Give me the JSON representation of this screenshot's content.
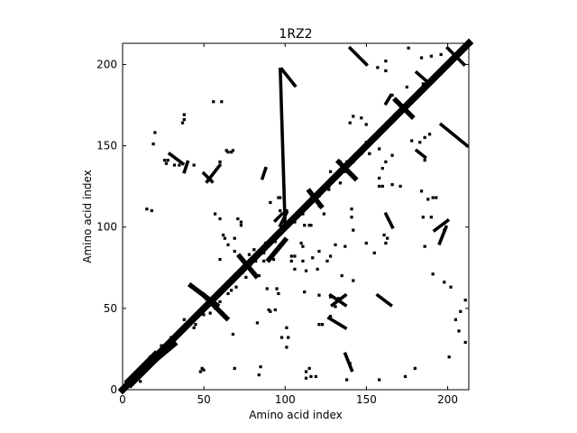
{
  "chart_data": {
    "type": "heatmap",
    "title": "1RZ2",
    "xlabel": "Amino acid index",
    "ylabel": "Amino acid index",
    "xlim": [
      0,
      213
    ],
    "ylim": [
      0,
      213
    ],
    "xticks": [
      0,
      50,
      100,
      150,
      200
    ],
    "yticks": [
      0,
      50,
      100,
      150,
      200
    ],
    "grid": false,
    "colors": {
      "contact": "#000000",
      "background": "#ffffff"
    },
    "diagonal": {
      "from": [
        0,
        0
      ],
      "to": [
        213,
        213
      ],
      "note_width_residues": 3
    },
    "segments": [
      {
        "from": [
          5,
          5
        ],
        "to": [
          20,
          20
        ],
        "width": 6
      },
      {
        "from": [
          20,
          18
        ],
        "to": [
          32,
          28
        ],
        "width": 3
      },
      {
        "from": [
          50,
          58
        ],
        "to": [
          64,
          44
        ],
        "width": 3
      },
      {
        "from": [
          42,
          64
        ],
        "to": [
          58,
          52
        ],
        "width": 3
      },
      {
        "from": [
          72,
          82
        ],
        "to": [
          82,
          70
        ],
        "width": 3
      },
      {
        "from": [
          90,
          80
        ],
        "to": [
          100,
          92
        ],
        "width": 3
      },
      {
        "from": [
          115,
          122
        ],
        "to": [
          122,
          113
        ],
        "width": 3
      },
      {
        "from": [
          133,
          140
        ],
        "to": [
          143,
          130
        ],
        "width": 3
      },
      {
        "from": [
          168,
          178
        ],
        "to": [
          178,
          168
        ],
        "width": 3
      },
      {
        "from": [
          137,
          58
        ],
        "to": [
          129,
          52
        ],
        "width": 2
      },
      {
        "from": [
          128,
          58
        ],
        "to": [
          137,
          52
        ],
        "width": 2
      },
      {
        "from": [
          59,
          137
        ],
        "to": [
          52,
          128
        ],
        "width": 2
      },
      {
        "from": [
          50,
          133
        ],
        "to": [
          55,
          128
        ],
        "width": 2
      },
      {
        "from": [
          140,
          210
        ],
        "to": [
          150,
          200
        ],
        "width": 2
      },
      {
        "from": [
          196,
          163
        ],
        "to": [
          212,
          150
        ],
        "width": 2
      },
      {
        "from": [
          200,
          210
        ],
        "to": [
          210,
          200
        ],
        "width": 2
      },
      {
        "from": [
          100,
          100
        ],
        "to": [
          97,
          197
        ],
        "width": 2
      },
      {
        "from": [
          98,
          197
        ],
        "to": [
          106,
          187
        ],
        "width": 2
      },
      {
        "from": [
          195,
          90
        ],
        "to": [
          199,
          100
        ],
        "width": 2
      },
      {
        "from": [
          192,
          98
        ],
        "to": [
          200,
          104
        ],
        "width": 2
      },
      {
        "from": [
          137,
          22
        ],
        "to": [
          141,
          12
        ],
        "width": 2
      },
      {
        "from": [
          127,
          44
        ],
        "to": [
          137,
          38
        ],
        "width": 2
      },
      {
        "from": [
          29,
          145
        ],
        "to": [
          37,
          139
        ],
        "width": 2
      },
      {
        "from": [
          38,
          134
        ],
        "to": [
          40,
          140
        ],
        "width": 2
      },
      {
        "from": [
          88,
          136
        ],
        "to": [
          86,
          130
        ],
        "width": 2
      },
      {
        "from": [
          94,
          104
        ],
        "to": [
          98,
          108
        ],
        "width": 2
      },
      {
        "from": [
          97,
          101
        ],
        "to": [
          101,
          109
        ],
        "width": 2
      },
      {
        "from": [
          181,
          147
        ],
        "to": [
          186,
          143
        ],
        "width": 2
      },
      {
        "from": [
          162,
          176
        ],
        "to": [
          165,
          181
        ],
        "width": 2
      },
      {
        "from": [
          157,
          58
        ],
        "to": [
          165,
          52
        ],
        "width": 2
      },
      {
        "from": [
          162,
          108
        ],
        "to": [
          166,
          100
        ],
        "width": 2
      },
      {
        "from": [
          181,
          195
        ],
        "to": [
          189,
          188
        ],
        "width": 2
      }
    ],
    "points": [
      [
        65,
        146
      ],
      [
        64,
        147
      ],
      [
        67,
        146
      ],
      [
        68,
        147
      ],
      [
        19,
        151
      ],
      [
        20,
        158
      ],
      [
        26,
        141
      ],
      [
        27,
        139
      ],
      [
        28,
        141
      ],
      [
        32,
        138
      ],
      [
        35,
        138
      ],
      [
        44,
        138
      ],
      [
        60,
        140
      ],
      [
        60,
        138
      ],
      [
        37,
        164
      ],
      [
        38,
        169
      ],
      [
        38,
        166
      ],
      [
        56,
        177
      ],
      [
        61,
        177
      ],
      [
        91,
        115
      ],
      [
        96,
        118
      ],
      [
        97,
        118
      ],
      [
        101,
        110
      ],
      [
        97,
        110
      ],
      [
        60,
        105
      ],
      [
        71,
        105
      ],
      [
        73,
        103
      ],
      [
        73,
        101
      ],
      [
        57,
        108
      ],
      [
        62,
        95
      ],
      [
        63,
        93
      ],
      [
        69,
        93
      ],
      [
        65,
        89
      ],
      [
        69,
        85
      ],
      [
        60,
        80
      ],
      [
        78,
        83
      ],
      [
        81,
        86
      ],
      [
        87,
        84
      ],
      [
        88,
        90
      ],
      [
        84,
        70
      ],
      [
        93,
        80
      ],
      [
        89,
        62
      ],
      [
        95,
        62
      ],
      [
        96,
        59
      ],
      [
        94,
        49
      ],
      [
        91,
        48
      ],
      [
        90,
        49
      ],
      [
        83,
        41
      ],
      [
        101,
        26
      ],
      [
        102,
        32
      ],
      [
        101,
        38
      ],
      [
        123,
        40
      ],
      [
        121,
        40
      ],
      [
        128,
        45
      ],
      [
        131,
        51
      ],
      [
        133,
        56
      ],
      [
        128,
        57
      ],
      [
        121,
        58
      ],
      [
        112,
        60
      ],
      [
        106,
        74
      ],
      [
        104,
        79
      ],
      [
        106,
        82
      ],
      [
        104,
        82
      ],
      [
        112,
        101
      ],
      [
        116,
        101
      ],
      [
        115,
        101
      ],
      [
        124,
        108
      ],
      [
        121,
        113
      ],
      [
        127,
        123
      ],
      [
        127,
        125
      ],
      [
        128,
        134
      ],
      [
        137,
        134
      ],
      [
        141,
        106
      ],
      [
        142,
        98
      ],
      [
        141,
        111
      ],
      [
        158,
        130
      ],
      [
        158,
        125
      ],
      [
        160,
        125
      ],
      [
        166,
        126
      ],
      [
        171,
        125
      ],
      [
        184,
        122
      ],
      [
        191,
        118
      ],
      [
        193,
        118
      ],
      [
        188,
        117
      ],
      [
        185,
        106
      ],
      [
        190,
        106
      ],
      [
        198,
        98
      ],
      [
        186,
        88
      ],
      [
        191,
        71
      ],
      [
        198,
        66
      ],
      [
        202,
        63
      ],
      [
        211,
        55
      ],
      [
        208,
        48
      ],
      [
        205,
        43
      ],
      [
        207,
        36
      ],
      [
        211,
        29
      ],
      [
        214,
        23
      ],
      [
        201,
        20
      ],
      [
        180,
        13
      ],
      [
        174,
        8
      ],
      [
        158,
        6
      ],
      [
        138,
        6
      ],
      [
        140,
        16
      ],
      [
        111,
        79
      ],
      [
        113,
        73
      ],
      [
        117,
        81
      ],
      [
        120,
        74
      ],
      [
        160,
        136
      ],
      [
        162,
        140
      ],
      [
        166,
        144
      ],
      [
        158,
        148
      ],
      [
        157,
        157
      ],
      [
        150,
        163
      ],
      [
        147,
        167
      ],
      [
        140,
        164
      ],
      [
        142,
        168
      ],
      [
        166,
        181
      ],
      [
        175,
        186
      ],
      [
        185,
        188
      ],
      [
        162,
        196
      ],
      [
        157,
        198
      ],
      [
        162,
        202
      ],
      [
        184,
        204
      ],
      [
        190,
        205
      ],
      [
        196,
        206
      ],
      [
        176,
        210
      ],
      [
        163,
        93
      ],
      [
        162,
        90
      ],
      [
        161,
        95
      ],
      [
        150,
        90
      ],
      [
        155,
        84
      ],
      [
        142,
        67
      ],
      [
        135,
        70
      ],
      [
        126,
        79
      ],
      [
        128,
        82
      ],
      [
        121,
        85
      ],
      [
        111,
        88
      ],
      [
        110,
        90
      ],
      [
        131,
        89
      ],
      [
        137,
        88
      ],
      [
        154,
        154
      ],
      [
        150,
        152
      ],
      [
        149,
        148
      ],
      [
        147,
        145
      ],
      [
        152,
        145
      ],
      [
        142,
        140
      ],
      [
        138,
        140
      ],
      [
        134,
        140
      ],
      [
        152,
        145
      ],
      [
        178,
        153
      ],
      [
        183,
        152
      ],
      [
        186,
        155
      ],
      [
        189,
        157
      ],
      [
        18,
        17
      ],
      [
        21,
        19
      ],
      [
        17,
        20
      ],
      [
        27,
        28
      ],
      [
        24,
        27
      ],
      [
        30,
        32
      ],
      [
        38,
        43
      ],
      [
        44,
        38
      ],
      [
        45,
        40
      ],
      [
        50,
        46
      ],
      [
        54,
        47
      ],
      [
        60,
        54
      ],
      [
        65,
        59
      ],
      [
        70,
        63
      ],
      [
        74,
        72
      ],
      [
        79,
        77
      ],
      [
        84,
        85
      ],
      [
        88,
        87
      ],
      [
        94,
        91
      ],
      [
        99,
        99
      ],
      [
        105,
        104
      ],
      [
        111,
        108
      ],
      [
        118,
        116
      ],
      [
        124,
        123
      ],
      [
        128,
        127
      ],
      [
        134,
        134
      ],
      [
        140,
        141
      ],
      [
        146,
        146
      ],
      [
        152,
        151
      ],
      [
        158,
        157
      ],
      [
        165,
        164
      ],
      [
        171,
        170
      ],
      [
        177,
        176
      ],
      [
        184,
        183
      ],
      [
        190,
        189
      ],
      [
        195,
        194
      ],
      [
        205,
        204
      ],
      [
        210,
        209
      ],
      [
        11,
        5
      ],
      [
        16,
        14
      ],
      [
        53,
        55
      ],
      [
        57,
        50
      ],
      [
        67,
        61
      ],
      [
        76,
        69
      ],
      [
        82,
        79
      ],
      [
        87,
        79
      ],
      [
        106,
        103
      ],
      [
        121,
        119
      ],
      [
        134,
        127
      ],
      [
        15,
        111
      ],
      [
        18,
        110
      ],
      [
        49,
        13
      ],
      [
        50,
        12
      ],
      [
        48,
        11
      ],
      [
        69,
        13
      ],
      [
        84,
        9
      ],
      [
        113,
        11
      ],
      [
        113,
        7
      ],
      [
        116,
        8
      ],
      [
        119,
        8
      ],
      [
        186,
        141
      ],
      [
        85,
        14
      ],
      [
        68,
        34
      ],
      [
        98,
        32
      ],
      [
        115,
        13
      ]
    ]
  }
}
